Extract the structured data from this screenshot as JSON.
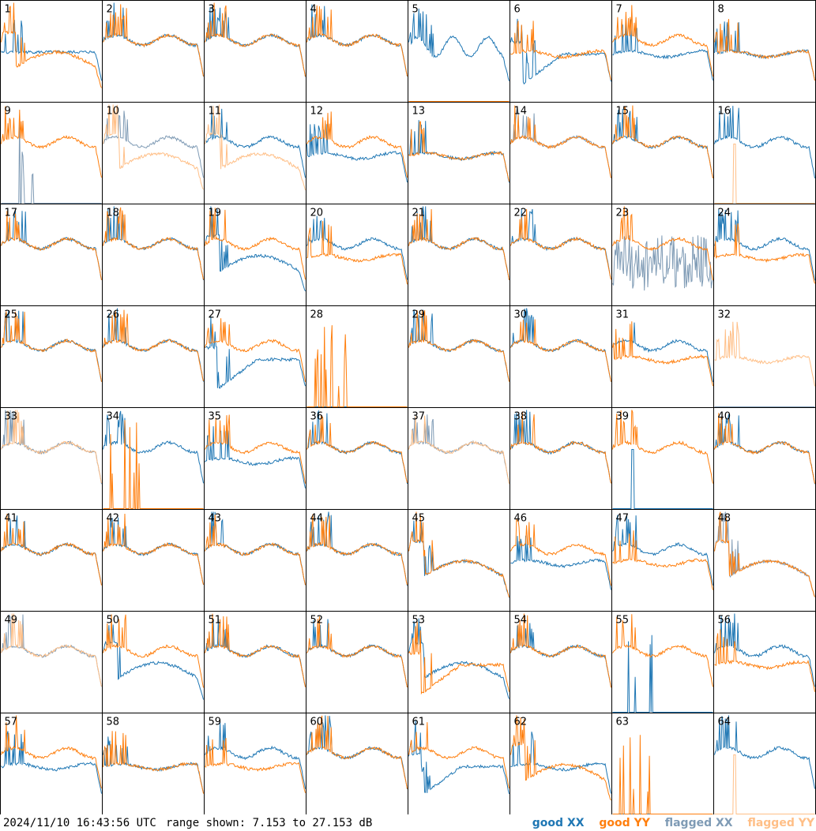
{
  "footer": {
    "timestamp": "2024/11/10 16:43:56 UTC",
    "range_text": "range shown: 7.153 to 27.153 dB"
  },
  "legend": {
    "good_prefix": "good",
    "flagged_prefix": "flagged",
    "xx": "XX",
    "yy": "YY"
  },
  "colors": {
    "good_xx": "#1f77b4",
    "good_yy": "#ff7f0e",
    "flagged_xx": "#7f9bb5",
    "flagged_yy": "#ffbf87"
  },
  "chart_data": {
    "type": "line",
    "layout": "8x8 grid of small multiples (tiles 1-64)",
    "y_range_db": [
      7.153,
      27.153
    ],
    "grid": false,
    "legend_placement": "bottom-right",
    "tiles": [
      {
        "n": 1,
        "xx": "good",
        "yy": "good",
        "shape_xx": "flat_mid_drop",
        "shape_yy": "dip_recover"
      },
      {
        "n": 2,
        "xx": "good",
        "yy": "good",
        "shape_xx": "flat_high",
        "shape_yy": "flat_high"
      },
      {
        "n": 3,
        "xx": "good",
        "yy": "good",
        "shape_xx": "flat_high",
        "shape_yy": "flat_high"
      },
      {
        "n": 4,
        "xx": "good",
        "yy": "good",
        "shape_xx": "flat_high",
        "shape_yy": "flat_high"
      },
      {
        "n": 5,
        "xx": "good",
        "yy": "good",
        "shape_xx": "wavy_mid",
        "shape_yy": "zero"
      },
      {
        "n": 6,
        "xx": "good",
        "yy": "good",
        "shape_xx": "deep_dip",
        "shape_yy": "flat_mid"
      },
      {
        "n": 7,
        "xx": "good",
        "yy": "good",
        "shape_xx": "flat_mid",
        "shape_yy": "flat_high"
      },
      {
        "n": 8,
        "xx": "good",
        "yy": "good",
        "shape_xx": "flat_mid",
        "shape_yy": "flat_mid"
      },
      {
        "n": 9,
        "xx": "flagged",
        "yy": "good",
        "shape_xx": "spikes",
        "shape_yy": "flat_high"
      },
      {
        "n": 10,
        "xx": "flagged",
        "yy": "flagged",
        "shape_xx": "flat_high",
        "shape_yy": "dip_recover"
      },
      {
        "n": 11,
        "xx": "good",
        "yy": "flagged",
        "shape_xx": "flat_high",
        "shape_yy": "dip_recover"
      },
      {
        "n": 12,
        "xx": "good",
        "yy": "good",
        "shape_xx": "flat_mid",
        "shape_yy": "flat_high"
      },
      {
        "n": 13,
        "xx": "good",
        "yy": "good",
        "shape_xx": "flat_mid",
        "shape_yy": "flat_mid"
      },
      {
        "n": 14,
        "xx": "flagged",
        "yy": "good",
        "shape_xx": "flat_high",
        "shape_yy": "flat_high"
      },
      {
        "n": 15,
        "xx": "good",
        "yy": "good",
        "shape_xx": "flat_high",
        "shape_yy": "flat_high"
      },
      {
        "n": 16,
        "xx": "good",
        "yy": "flagged",
        "shape_xx": "flat_high",
        "shape_yy": "spike"
      },
      {
        "n": 17,
        "xx": "good",
        "yy": "good",
        "shape_xx": "flat_high",
        "shape_yy": "flat_high"
      },
      {
        "n": 18,
        "xx": "good",
        "yy": "good",
        "shape_xx": "flat_high",
        "shape_yy": "flat_high"
      },
      {
        "n": 19,
        "xx": "good",
        "yy": "good",
        "shape_xx": "dip_recover",
        "shape_yy": "flat_high"
      },
      {
        "n": 20,
        "xx": "good",
        "yy": "good",
        "shape_xx": "flat_high",
        "shape_yy": "flat_mid"
      },
      {
        "n": 21,
        "xx": "good",
        "yy": "good",
        "shape_xx": "flat_high",
        "shape_yy": "flat_high"
      },
      {
        "n": 22,
        "xx": "good",
        "yy": "good",
        "shape_xx": "flat_high",
        "shape_yy": "flat_high"
      },
      {
        "n": 23,
        "xx": "flagged",
        "yy": "good",
        "shape_xx": "noisy",
        "shape_yy": "flat_high"
      },
      {
        "n": 24,
        "xx": "good",
        "yy": "good",
        "shape_xx": "flat_high",
        "shape_yy": "flat_mid"
      },
      {
        "n": 25,
        "xx": "good",
        "yy": "good",
        "shape_xx": "flat_high",
        "shape_yy": "flat_high"
      },
      {
        "n": 26,
        "xx": "good",
        "yy": "good",
        "shape_xx": "flat_high",
        "shape_yy": "flat_high"
      },
      {
        "n": 27,
        "xx": "good",
        "yy": "good",
        "shape_xx": "deep_dip",
        "shape_yy": "flat_high"
      },
      {
        "n": 28,
        "xx": "good",
        "yy": "good",
        "shape_xx": "zero",
        "shape_yy": "spikes"
      },
      {
        "n": 29,
        "xx": "good",
        "yy": "good",
        "shape_xx": "flat_high",
        "shape_yy": "flat_high"
      },
      {
        "n": 30,
        "xx": "good",
        "yy": "good",
        "shape_xx": "flat_high",
        "shape_yy": "flat_high"
      },
      {
        "n": 31,
        "xx": "good",
        "yy": "good",
        "shape_xx": "flat_high",
        "shape_yy": "flat_mid"
      },
      {
        "n": 32,
        "xx": "flagged",
        "yy": "flagged",
        "shape_xx": "zero",
        "shape_yy": "flat_mid"
      },
      {
        "n": 33,
        "xx": "flagged",
        "yy": "flagged",
        "shape_xx": "flat_high",
        "shape_yy": "flat_high"
      },
      {
        "n": 34,
        "xx": "good",
        "yy": "good",
        "shape_xx": "flat_high",
        "shape_yy": "spikes"
      },
      {
        "n": 35,
        "xx": "good",
        "yy": "good",
        "shape_xx": "flat_mid",
        "shape_yy": "flat_high"
      },
      {
        "n": 36,
        "xx": "good",
        "yy": "good",
        "shape_xx": "flat_high",
        "shape_yy": "flat_high"
      },
      {
        "n": 37,
        "xx": "flagged",
        "yy": "flagged",
        "shape_xx": "flat_high",
        "shape_yy": "flat_high"
      },
      {
        "n": 38,
        "xx": "good",
        "yy": "good",
        "shape_xx": "flat_high",
        "shape_yy": "flat_high"
      },
      {
        "n": 39,
        "xx": "good",
        "yy": "good",
        "shape_xx": "spike",
        "shape_yy": "flat_high"
      },
      {
        "n": 40,
        "xx": "good",
        "yy": "good",
        "shape_xx": "flat_high",
        "shape_yy": "flat_high"
      },
      {
        "n": 41,
        "xx": "good",
        "yy": "good",
        "shape_xx": "flat_high",
        "shape_yy": "flat_high"
      },
      {
        "n": 42,
        "xx": "good",
        "yy": "good",
        "shape_xx": "flat_high",
        "shape_yy": "flat_high"
      },
      {
        "n": 43,
        "xx": "good",
        "yy": "good",
        "shape_xx": "flat_high",
        "shape_yy": "flat_high"
      },
      {
        "n": 44,
        "xx": "good",
        "yy": "good",
        "shape_xx": "flat_high",
        "shape_yy": "flat_high"
      },
      {
        "n": 45,
        "xx": "good",
        "yy": "good",
        "shape_xx": "dip_recover",
        "shape_yy": "dip_recover"
      },
      {
        "n": 46,
        "xx": "good",
        "yy": "good",
        "shape_xx": "flat_mid",
        "shape_yy": "flat_high"
      },
      {
        "n": 47,
        "xx": "good",
        "yy": "good",
        "shape_xx": "flat_high",
        "shape_yy": "flat_mid"
      },
      {
        "n": 48,
        "xx": "flagged",
        "yy": "good",
        "shape_xx": "dip_recover",
        "shape_yy": "dip_recover"
      },
      {
        "n": 49,
        "xx": "flagged",
        "yy": "flagged",
        "shape_xx": "flat_high",
        "shape_yy": "flat_high"
      },
      {
        "n": 50,
        "xx": "good",
        "yy": "good",
        "shape_xx": "dip_recover",
        "shape_yy": "flat_high"
      },
      {
        "n": 51,
        "xx": "good",
        "yy": "good",
        "shape_xx": "flat_high",
        "shape_yy": "flat_high"
      },
      {
        "n": 52,
        "xx": "good",
        "yy": "good",
        "shape_xx": "flat_high",
        "shape_yy": "flat_high"
      },
      {
        "n": 53,
        "xx": "good",
        "yy": "good",
        "shape_xx": "dip_recover",
        "shape_yy": "deep_dip"
      },
      {
        "n": 54,
        "xx": "good",
        "yy": "good",
        "shape_xx": "flat_high",
        "shape_yy": "flat_high"
      },
      {
        "n": 55,
        "xx": "good",
        "yy": "good",
        "shape_xx": "spikes",
        "shape_yy": "flat_high"
      },
      {
        "n": 56,
        "xx": "good",
        "yy": "good",
        "shape_xx": "flat_high",
        "shape_yy": "flat_mid"
      },
      {
        "n": 57,
        "xx": "good",
        "yy": "good",
        "shape_xx": "flat_mid",
        "shape_yy": "flat_high"
      },
      {
        "n": 58,
        "xx": "good",
        "yy": "good",
        "shape_xx": "flat_mid",
        "shape_yy": "flat_mid"
      },
      {
        "n": 59,
        "xx": "good",
        "yy": "good",
        "shape_xx": "flat_high",
        "shape_yy": "flat_mid"
      },
      {
        "n": 60,
        "xx": "good",
        "yy": "good",
        "shape_xx": "flat_high",
        "shape_yy": "flat_high"
      },
      {
        "n": 61,
        "xx": "good",
        "yy": "good",
        "shape_xx": "deep_dip",
        "shape_yy": "flat_high"
      },
      {
        "n": 62,
        "xx": "good",
        "yy": "good",
        "shape_xx": "flat_mid",
        "shape_yy": "dip_recover"
      },
      {
        "n": 63,
        "xx": "good",
        "yy": "good",
        "shape_xx": "zero",
        "shape_yy": "spikes"
      },
      {
        "n": 64,
        "xx": "good",
        "yy": "flagged",
        "shape_xx": "flat_high",
        "shape_yy": "spike"
      }
    ]
  }
}
